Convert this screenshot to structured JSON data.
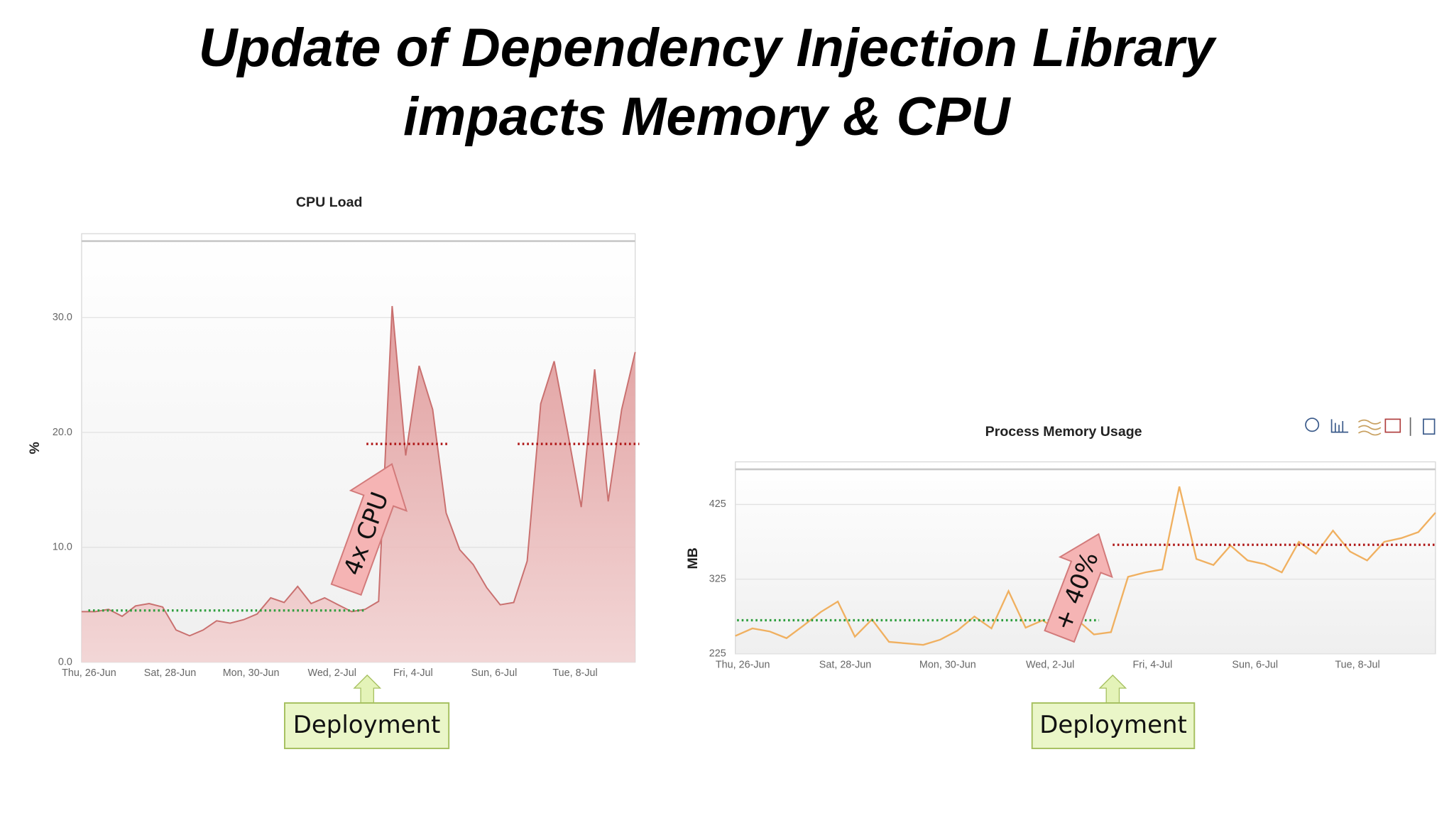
{
  "title": [
    "Update of Dependency Injection Library",
    "impacts Memory & CPU"
  ],
  "chart_data": [
    {
      "type": "area",
      "title": "CPU Load",
      "y_label": "%",
      "color": "#c9706f",
      "categories": [
        "Thu, 26-Jun",
        null,
        null,
        null,
        null,
        null,
        "Sat, 28-Jun",
        null,
        null,
        null,
        null,
        null,
        "Mon, 30-Jun",
        null,
        null,
        null,
        null,
        null,
        "Wed, 2-Jul",
        null,
        null,
        null,
        null,
        null,
        "Fri, 4-Jul",
        null,
        null,
        null,
        null,
        null,
        "Sun, 6-Jul",
        null,
        null,
        null,
        null,
        null,
        "Tue, 8-Jul",
        null,
        null,
        null,
        null,
        null
      ],
      "values": [
        4.4,
        4.4,
        4.6,
        4.0,
        4.9,
        5.1,
        4.8,
        2.8,
        2.3,
        2.8,
        3.6,
        3.4,
        3.7,
        4.2,
        5.6,
        5.2,
        6.6,
        5.1,
        5.6,
        5.0,
        4.4,
        4.6,
        5.3,
        31.0,
        18.0,
        25.8,
        22.0,
        13.0,
        9.8,
        8.5,
        6.5,
        5.0,
        5.2,
        8.8,
        22.5,
        26.2,
        20.0,
        13.5,
        25.5,
        14.0,
        22.0,
        27.0
      ],
      "ylim": [
        0,
        37.3
      ],
      "yticks": [
        {
          "value": 0,
          "label": "0.0"
        },
        {
          "value": 10,
          "label": "10.0"
        },
        {
          "value": 20,
          "label": "20.0"
        },
        {
          "value": 30,
          "label": "30.0"
        }
      ],
      "grid": true,
      "reference_lines": [
        {
          "y": 4.5,
          "x_from": 0.5,
          "x_to": 20.9,
          "color": "#2e9e3e"
        },
        {
          "y": 19,
          "x_from": 21.1,
          "x_to": 27.1,
          "color": "#b01818"
        },
        {
          "y": 19,
          "x_from": 32.3,
          "x_to": 41.3,
          "color": "#b01818"
        }
      ],
      "annotations": [
        "4x CPU",
        "Deployment"
      ]
    },
    {
      "type": "line",
      "title": "Process Memory Usage",
      "y_label": "MB",
      "color": "#f0b060",
      "categories": [
        "Thu, 26-Jun",
        null,
        null,
        null,
        null,
        null,
        "Sat, 28-Jun",
        null,
        null,
        null,
        null,
        null,
        "Mon, 30-Jun",
        null,
        null,
        null,
        null,
        null,
        "Wed, 2-Jul",
        null,
        null,
        null,
        null,
        null,
        "Fri, 4-Jul",
        null,
        null,
        null,
        null,
        null,
        "Sun, 6-Jul",
        null,
        null,
        null,
        null,
        null,
        "Tue, 8-Jul",
        null,
        null,
        null,
        null,
        null
      ],
      "values": [
        249,
        259,
        255,
        246,
        263,
        281,
        295,
        248,
        271,
        241,
        239,
        237,
        244,
        256,
        275,
        259,
        309,
        260,
        270,
        254,
        271,
        251,
        254,
        328,
        334,
        338,
        449,
        352,
        344,
        370,
        350,
        345,
        334,
        375,
        359,
        390,
        362,
        350,
        375,
        380,
        388,
        414
      ],
      "ylim": [
        225,
        482
      ],
      "yticks": [
        225,
        325,
        425
      ],
      "grid": true,
      "reference_lines": [
        {
          "y": 270,
          "x_from": 0.1,
          "x_to": 21.3,
          "color": "#2e9e3e"
        },
        {
          "y": 371,
          "x_from": 22.1,
          "x_to": 41,
          "color": "#b01818"
        }
      ],
      "annotations": [
        "+ 40%",
        "Deployment"
      ]
    }
  ]
}
